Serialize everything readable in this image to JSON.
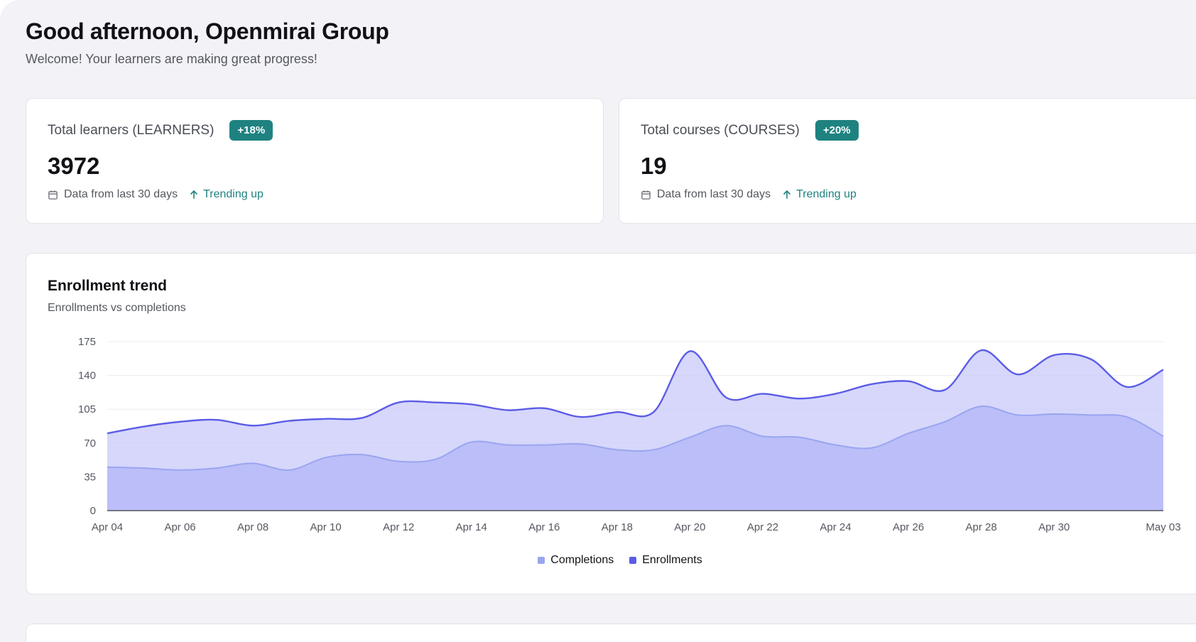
{
  "header": {
    "greeting": "Good afternoon, Openmirai Group",
    "welcome": "Welcome! Your learners are making great progress!"
  },
  "stats": [
    {
      "label": "Total learners (LEARNERS)",
      "badge": "+18%",
      "value": "3972",
      "period": "Data from last 30 days",
      "trend": "Trending up",
      "period_icon": "calendar-icon",
      "trend_icon": "arrow-up-icon"
    },
    {
      "label": "Total courses (COURSES)",
      "badge": "+20%",
      "value": "19",
      "period": "Data from last 30 days",
      "trend": "Trending up",
      "period_icon": "calendar-icon",
      "trend_icon": "arrow-up-icon"
    }
  ],
  "colors": {
    "accent": "#1e8280",
    "enrollments": "#5b5ce6",
    "completions": "#9aa5f0"
  },
  "chart_data": {
    "type": "area",
    "title": "Enrollment trend",
    "subtitle": "Enrollments vs completions",
    "x": [
      "Apr 04",
      "Apr 05",
      "Apr 06",
      "Apr 07",
      "Apr 08",
      "Apr 09",
      "Apr 10",
      "Apr 11",
      "Apr 12",
      "Apr 13",
      "Apr 14",
      "Apr 15",
      "Apr 16",
      "Apr 17",
      "Apr 18",
      "Apr 19",
      "Apr 20",
      "Apr 21",
      "Apr 22",
      "Apr 23",
      "Apr 24",
      "Apr 25",
      "Apr 26",
      "Apr 27",
      "Apr 28",
      "Apr 29",
      "Apr 30",
      "May 01",
      "May 02",
      "May 03"
    ],
    "x_tick_labels": [
      "Apr 04",
      "Apr 06",
      "Apr 08",
      "Apr 10",
      "Apr 12",
      "Apr 14",
      "Apr 16",
      "Apr 18",
      "Apr 20",
      "Apr 22",
      "Apr 24",
      "Apr 26",
      "Apr 28",
      "Apr 30",
      "May 03"
    ],
    "y_ticks": [
      0,
      35,
      70,
      105,
      140,
      175
    ],
    "ylim": [
      0,
      175
    ],
    "grid": true,
    "legend_position": "bottom-center",
    "series": [
      {
        "name": "Completions",
        "color": "#9aa5f0",
        "values": [
          45,
          44,
          42,
          44,
          49,
          42,
          55,
          58,
          51,
          53,
          71,
          68,
          68,
          69,
          63,
          63,
          76,
          88,
          77,
          76,
          68,
          65,
          80,
          92,
          108,
          99,
          100,
          99,
          97,
          77
        ]
      },
      {
        "name": "Enrollments",
        "color": "#5b5ce6",
        "values": [
          80,
          87,
          92,
          94,
          88,
          93,
          95,
          96,
          112,
          112,
          110,
          104,
          106,
          97,
          102,
          102,
          165,
          117,
          121,
          116,
          121,
          131,
          134,
          125,
          166,
          141,
          161,
          157,
          128,
          146
        ]
      }
    ]
  }
}
